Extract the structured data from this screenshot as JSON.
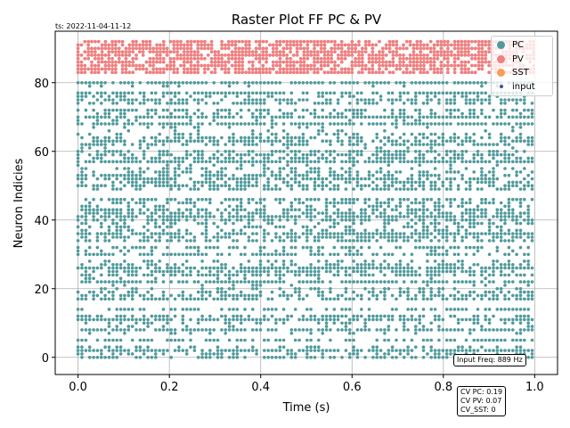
{
  "timestamp": "ts: 2022-11-04-11-12",
  "chart_data": {
    "type": "scatter",
    "title": "Raster Plot FF PC & PV",
    "xlabel": "Time (s)",
    "ylabel": "Neuron Indicies",
    "xlim": [
      -0.05,
      1.05
    ],
    "ylim": [
      -5,
      95
    ],
    "xticks": [
      0.0,
      0.2,
      0.4,
      0.6,
      0.8,
      1.0
    ],
    "xtick_labels": [
      "0.0",
      "0.2",
      "0.4",
      "0.6",
      "0.8",
      "1.0"
    ],
    "yticks": [
      0,
      20,
      40,
      60,
      80
    ],
    "ytick_labels": [
      "0",
      "20",
      "40",
      "60",
      "80"
    ],
    "grid": true,
    "legend_position": "top-right",
    "series": [
      {
        "name": "PC",
        "color": "#4f9a9b",
        "neuron_range": [
          0,
          80
        ],
        "time_range": [
          0.0,
          1.0
        ]
      },
      {
        "name": "PV",
        "color": "#f07f7f",
        "neuron_range": [
          83,
          92
        ],
        "time_range": [
          0.0,
          1.0
        ]
      },
      {
        "name": "SST",
        "color": "#f5a054",
        "neuron_range": [],
        "time_range": []
      },
      {
        "name": "input",
        "color": "#4b4b8c",
        "neuron_range": [],
        "time_range": []
      }
    ],
    "annotations": {
      "input_freq": "Input Freq: 889 Hz",
      "cv_pc": "CV PC: 0.19",
      "cv_pv": "CV PV: 0.07",
      "cv_sst": "CV_SST: 0"
    }
  }
}
